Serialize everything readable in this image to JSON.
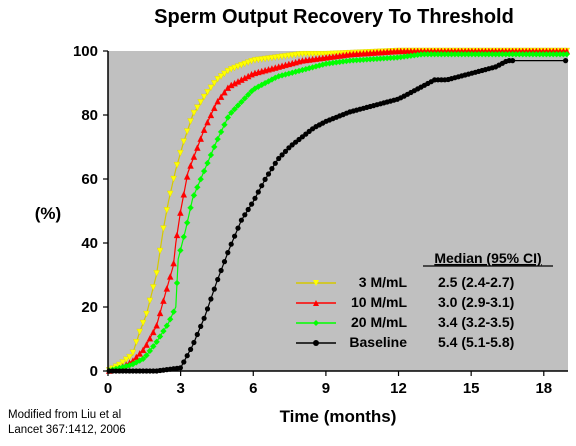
{
  "chart_data": {
    "type": "line",
    "title": "Sperm Output Recovery To Threshold",
    "xlabel": "Time (months)",
    "ylabel": "(%)",
    "xlim": [
      0,
      19
    ],
    "ylim": [
      0,
      100
    ],
    "xticks": [
      0,
      3,
      6,
      9,
      12,
      15,
      18
    ],
    "yticks": [
      0,
      20,
      40,
      60,
      80,
      100
    ],
    "background": "#c0c0c0",
    "legend_header": "Median (95% CI)",
    "legend_position": "bottom-right",
    "series": [
      {
        "name": "3 M/mL",
        "median": "2.5 (2.4-2.7)",
        "color": "#ffff00",
        "marker": "triangle-down",
        "points": [
          [
            0,
            0
          ],
          [
            0.5,
            2
          ],
          [
            1,
            5
          ],
          [
            1.3,
            12
          ],
          [
            1.6,
            18
          ],
          [
            2,
            30
          ],
          [
            2.3,
            45
          ],
          [
            2.5,
            53
          ],
          [
            2.8,
            63
          ],
          [
            3.1,
            71
          ],
          [
            3.5,
            80
          ],
          [
            4,
            86
          ],
          [
            4.5,
            91
          ],
          [
            5,
            94
          ],
          [
            6,
            97
          ],
          [
            7,
            98
          ],
          [
            8,
            99
          ],
          [
            9,
            99
          ],
          [
            12,
            100
          ],
          [
            19,
            100
          ]
        ]
      },
      {
        "name": "10 M/mL",
        "median": "3.0 (2.9-3.1)",
        "color": "#ff0000",
        "marker": "triangle-up",
        "points": [
          [
            0,
            0
          ],
          [
            0.5,
            1
          ],
          [
            1,
            3
          ],
          [
            1.5,
            7
          ],
          [
            2,
            14
          ],
          [
            2.4,
            25
          ],
          [
            2.7,
            33
          ],
          [
            2.8,
            40
          ],
          [
            3,
            50
          ],
          [
            3.3,
            62
          ],
          [
            3.7,
            70
          ],
          [
            4,
            76
          ],
          [
            4.5,
            84
          ],
          [
            5,
            89
          ],
          [
            6,
            93
          ],
          [
            7,
            95
          ],
          [
            8,
            97
          ],
          [
            9,
            98
          ],
          [
            10,
            99
          ],
          [
            12,
            100
          ],
          [
            19,
            100
          ]
        ]
      },
      {
        "name": "20 M/mL",
        "median": "3.4 (3.2-3.5)",
        "color": "#00ff00",
        "marker": "diamond",
        "points": [
          [
            0,
            0
          ],
          [
            0.5,
            1
          ],
          [
            1,
            2
          ],
          [
            1.5,
            4
          ],
          [
            2,
            9
          ],
          [
            2.5,
            15
          ],
          [
            2.8,
            20
          ],
          [
            2.9,
            35
          ],
          [
            3.2,
            44
          ],
          [
            3.5,
            54
          ],
          [
            4,
            63
          ],
          [
            4.5,
            72
          ],
          [
            5,
            80
          ],
          [
            5.5,
            84
          ],
          [
            6,
            88
          ],
          [
            7,
            92
          ],
          [
            8,
            94
          ],
          [
            9,
            96
          ],
          [
            10,
            97
          ],
          [
            12,
            98
          ],
          [
            13,
            99
          ],
          [
            16,
            99
          ],
          [
            19,
            99
          ]
        ]
      },
      {
        "name": "Baseline",
        "median": "5.4 (5.1-5.8)",
        "color": "#000000",
        "marker": "circle",
        "points": [
          [
            0,
            0
          ],
          [
            1,
            0
          ],
          [
            2,
            0
          ],
          [
            3,
            1
          ],
          [
            3.5,
            8
          ],
          [
            4,
            17
          ],
          [
            4.5,
            28
          ],
          [
            5,
            38
          ],
          [
            5.5,
            47
          ],
          [
            6,
            53
          ],
          [
            6.5,
            60
          ],
          [
            7,
            66
          ],
          [
            7.5,
            70
          ],
          [
            8,
            73
          ],
          [
            8.5,
            76
          ],
          [
            9,
            78
          ],
          [
            10,
            81
          ],
          [
            11,
            83
          ],
          [
            12,
            85
          ],
          [
            12.5,
            87
          ],
          [
            13,
            89
          ],
          [
            13.5,
            91
          ],
          [
            14,
            91
          ],
          [
            15,
            93
          ],
          [
            15.5,
            94
          ],
          [
            16,
            95
          ],
          [
            16.5,
            97
          ],
          [
            19,
            97
          ]
        ]
      }
    ]
  },
  "source_note": {
    "line1": "Modified from Liu et al",
    "line2": "Lancet 367:1412, 2006"
  }
}
